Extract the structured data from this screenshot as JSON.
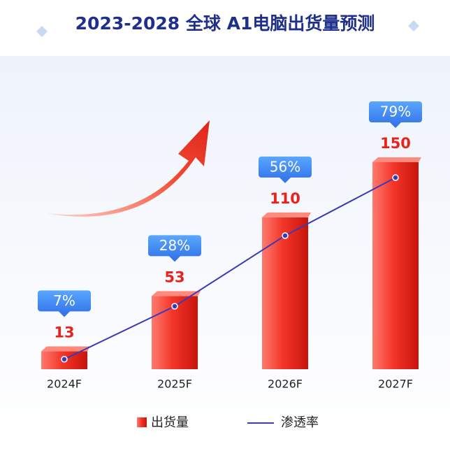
{
  "chart_data": {
    "type": "bar",
    "title": "2023-2028 全球 A1电脑出货量预测",
    "categories": [
      "2024F",
      "2025F",
      "2026F",
      "2027F"
    ],
    "series": [
      {
        "name": "出货量",
        "color": "#e8231b",
        "values": [
          13,
          53,
          110,
          150
        ]
      },
      {
        "name": "渗透率",
        "color": "#3b3bb5",
        "type": "line",
        "axis": "y2",
        "values": [
          7,
          28,
          56,
          79
        ],
        "value_labels": [
          "7%",
          "28%",
          "56%",
          "79%"
        ]
      }
    ]
  }
}
